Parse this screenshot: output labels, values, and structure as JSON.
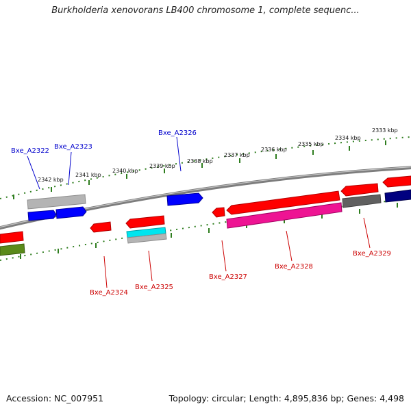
{
  "title": "Burkholderia xenovorans LB400 chromosome 1, complete sequenc...",
  "accession": "Accession: NC_007951",
  "summary": "Topology: circular; Length: 4,895,836 bp; Genes: 4,498",
  "colors": {
    "backbone": "#8c8c8c",
    "tick_green": "#2e7d1e",
    "forward_label": "#0000cc",
    "reverse_label": "#cc0000",
    "red": "#ff0000",
    "blue": "#0000ff",
    "grey": "#b0b0b0",
    "dark_grey": "#606060",
    "cyan": "#00e5ee",
    "magenta": "#ee1493",
    "navy": "#000080",
    "olive": "#5a8a1a"
  },
  "scale": {
    "ticks": [
      {
        "label": "2342 kbp"
      },
      {
        "label": "2341 kbp"
      },
      {
        "label": "2340 kbp"
      },
      {
        "label": "2339 kbp"
      },
      {
        "label": "2338 kbp"
      },
      {
        "label": "2337 kbp"
      },
      {
        "label": "2336 kbp"
      },
      {
        "label": "2335 kbp"
      },
      {
        "label": "2334 kbp"
      },
      {
        "label": "2333 kbp"
      }
    ]
  },
  "genes": [
    {
      "label": "Bxe_A2322",
      "strand": "forward",
      "color": "grey"
    },
    {
      "label": "Bxe_A2323",
      "strand": "forward",
      "color": "blue"
    },
    {
      "label": "Bxe_A2326",
      "strand": "forward",
      "color": "blue"
    },
    {
      "label": "Bxe_A2324",
      "strand": "reverse",
      "color": "red"
    },
    {
      "label": "Bxe_A2325",
      "strand": "reverse",
      "color": "cyan"
    },
    {
      "label": "Bxe_A2327",
      "strand": "reverse",
      "color": "red"
    },
    {
      "label": "Bxe_A2328",
      "strand": "reverse",
      "color": "magenta"
    },
    {
      "label": "Bxe_A2329",
      "strand": "reverse",
      "color": "dark_grey"
    }
  ]
}
